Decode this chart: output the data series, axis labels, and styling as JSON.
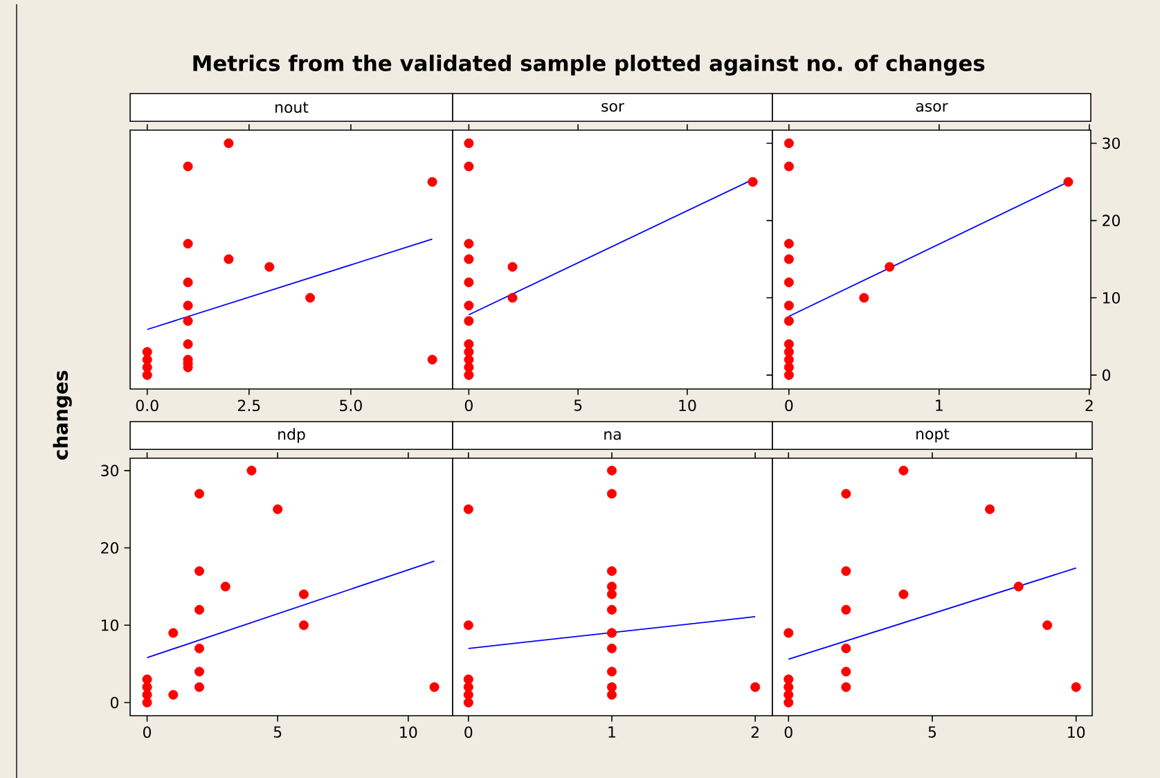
{
  "chart_data": [
    {
      "type": "scatter",
      "title": "Metrics from the validated sample plotted against no. of changes",
      "subtitle": "nout",
      "marker": "circle",
      "tick_labels": "x",
      "xlim": [
        -0.42,
        7.5
      ],
      "ylim": [
        -1.8,
        31.7
      ],
      "xticks": [
        {
          "value": 0,
          "label": "0.0"
        },
        {
          "value": 2.5,
          "label": "2.5"
        },
        {
          "value": 5,
          "label": "5.0"
        }
      ],
      "yticks": [
        0,
        10,
        20,
        30
      ],
      "series": [
        {
          "type": "scatter",
          "color": "#ff0000",
          "x": [
            0,
            0,
            0,
            0,
            1,
            1,
            1,
            1,
            1,
            1,
            1,
            1,
            1,
            2,
            2,
            3,
            4,
            7,
            7
          ],
          "values": [
            3,
            2,
            1,
            0,
            27,
            17,
            12,
            9,
            7,
            4,
            2,
            1.5,
            1,
            30,
            15,
            14,
            10,
            25,
            2
          ]
        },
        {
          "type": "line",
          "color": "#0000ff",
          "marker": "none",
          "x": [
            0,
            7
          ],
          "values": [
            5.9,
            17.6
          ]
        }
      ]
    },
    {
      "type": "scatter",
      "subtitle": "sor",
      "marker": "circle",
      "tick_labels": "x",
      "xlim": [
        -0.74,
        13.9
      ],
      "ylim": [
        -1.8,
        31.7
      ],
      "xticks": [
        0,
        5,
        10
      ],
      "yticks": [
        0,
        10,
        20,
        30
      ],
      "series": [
        {
          "type": "scatter",
          "color": "#ff0000",
          "x": [
            0,
            0,
            0,
            0,
            0,
            0,
            0,
            0,
            0,
            0,
            0,
            0,
            2,
            2,
            13
          ],
          "values": [
            30,
            27,
            17,
            15,
            12,
            9,
            7,
            4,
            3,
            2,
            1,
            0,
            14,
            10,
            25
          ]
        },
        {
          "type": "line",
          "color": "#0000ff",
          "marker": "none",
          "x": [
            0,
            13
          ],
          "values": [
            7.8,
            25.3
          ]
        }
      ]
    },
    {
      "type": "scatter",
      "subtitle": "asor",
      "marker": "circle",
      "xlim": [
        -0.11,
        2.01
      ],
      "ylim": [
        -1.8,
        31.7
      ],
      "xticks": [
        0,
        1,
        2
      ],
      "yticks": [
        0,
        10,
        20,
        30
      ],
      "series": [
        {
          "type": "scatter",
          "color": "#ff0000",
          "x": [
            0,
            0,
            0,
            0,
            0,
            0,
            0,
            0,
            0,
            0,
            0,
            0,
            0.5,
            0.67,
            1.86
          ],
          "values": [
            30,
            27,
            17,
            15,
            12,
            9,
            7,
            4,
            3,
            2,
            1,
            0,
            10,
            14,
            25
          ]
        },
        {
          "type": "line",
          "color": "#0000ff",
          "marker": "none",
          "x": [
            0,
            1.86
          ],
          "values": [
            7.6,
            25
          ]
        }
      ]
    },
    {
      "type": "scatter",
      "subtitle": "ndp",
      "ylabel": "changes",
      "marker": "circle",
      "xlim": [
        -0.65,
        11.7
      ],
      "ylim": [
        -1.7,
        31.6
      ],
      "xticks": [
        0,
        5,
        10
      ],
      "yticks": [
        0,
        10,
        20,
        30
      ],
      "series": [
        {
          "type": "scatter",
          "color": "#ff0000",
          "x": [
            0,
            0,
            0,
            0,
            1,
            1,
            2,
            2,
            2,
            2,
            2,
            2,
            3,
            4,
            5,
            6,
            6,
            11
          ],
          "values": [
            3,
            2,
            1,
            0,
            9,
            1,
            27,
            17,
            12,
            7,
            4,
            2,
            15,
            30,
            25,
            14,
            10,
            2
          ]
        },
        {
          "type": "line",
          "color": "#0000ff",
          "marker": "none",
          "x": [
            0,
            11
          ],
          "values": [
            5.8,
            18.3
          ]
        }
      ]
    },
    {
      "type": "scatter",
      "subtitle": "na",
      "marker": "circle",
      "tick_labels": "x",
      "xlim": [
        -0.11,
        2.12
      ],
      "ylim": [
        -1.7,
        31.6
      ],
      "xticks": [
        0,
        1,
        2
      ],
      "yticks": [
        0,
        10,
        20,
        30
      ],
      "series": [
        {
          "type": "scatter",
          "color": "#ff0000",
          "x": [
            0,
            0,
            0,
            0,
            0,
            0,
            1,
            1,
            1,
            1,
            1,
            1,
            1,
            1,
            1,
            1,
            1,
            2
          ],
          "values": [
            25,
            10,
            3,
            2,
            1,
            0,
            30,
            27,
            17,
            15,
            14,
            12,
            9,
            7,
            4,
            2,
            1,
            2
          ]
        },
        {
          "type": "line",
          "color": "#0000ff",
          "marker": "none",
          "x": [
            0,
            2
          ],
          "values": [
            7.0,
            11.1
          ]
        }
      ]
    },
    {
      "type": "scatter",
      "subtitle": "nopt",
      "marker": "circle",
      "tick_labels": "x",
      "xlim": [
        -0.56,
        10.56
      ],
      "ylim": [
        -1.7,
        31.6
      ],
      "xticks": [
        0,
        5,
        10
      ],
      "yticks": [
        0,
        10,
        20,
        30
      ],
      "series": [
        {
          "type": "scatter",
          "color": "#ff0000",
          "x": [
            0,
            0,
            0,
            0,
            0,
            2,
            2,
            2,
            2,
            2,
            2,
            4,
            4,
            7,
            8,
            9,
            10
          ],
          "values": [
            9,
            3,
            2,
            1,
            0,
            27,
            17,
            12,
            7,
            4,
            2,
            30,
            14,
            25,
            15,
            10,
            2
          ]
        },
        {
          "type": "line",
          "color": "#0000ff",
          "marker": "none",
          "x": [
            0,
            10
          ],
          "values": [
            5.6,
            17.4
          ]
        }
      ]
    }
  ]
}
